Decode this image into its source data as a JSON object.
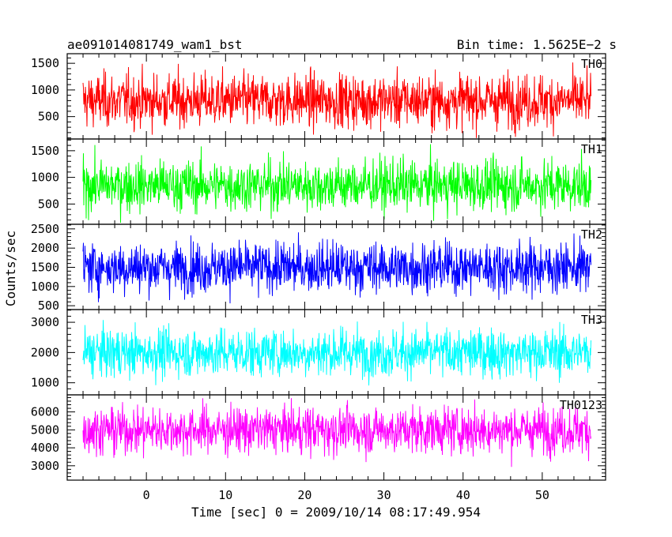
{
  "header": {
    "title": "ae091014081749_wam1_bst",
    "bin_time": "Bin time: 1.5625E−2 s"
  },
  "axes": {
    "ylabel": "Counts/sec",
    "xlabel": "Time [sec] 0 = 2009/10/14 08:17:49.954"
  },
  "chart_data": {
    "type": "line",
    "title": "ae091014081749_wam1_bst",
    "xlabel": "Time [sec] 0 = 2009/10/14 08:17:49.954",
    "ylabel": "Counts/sec",
    "xlim": [
      -10,
      58
    ],
    "x_ticks": [
      0,
      10,
      20,
      30,
      40,
      50
    ],
    "data_range_x": [
      -8.0,
      56.2
    ],
    "bin_time": 0.015625,
    "grid": false,
    "panels": [
      {
        "name": "TH0",
        "color": "#ff0000",
        "ylim": [
          80,
          1680
        ],
        "y_ticks": [
          500,
          1000,
          1500
        ],
        "mean": 800,
        "spread": 250,
        "min": 100,
        "max": 1680
      },
      {
        "name": "TH1",
        "color": "#00ff00",
        "ylim": [
          120,
          1720
        ],
        "y_ticks": [
          500,
          1000,
          1500
        ],
        "mean": 850,
        "spread": 240,
        "min": 150,
        "max": 1720
      },
      {
        "name": "TH2",
        "color": "#0000ff",
        "ylim": [
          400,
          2620
        ],
        "y_ticks": [
          500,
          1000,
          1500,
          2000,
          2500
        ],
        "mean": 1500,
        "spread": 330,
        "min": 450,
        "max": 2620
      },
      {
        "name": "TH3",
        "color": "#00ffff",
        "ylim": [
          600,
          3420
        ],
        "y_ticks": [
          1000,
          2000,
          3000
        ],
        "mean": 2000,
        "spread": 400,
        "min": 700,
        "max": 3420
      },
      {
        "name": "TH0123",
        "color": "#ff00ff",
        "ylim": [
          2200,
          6950
        ],
        "y_ticks": [
          3000,
          4000,
          5000,
          6000
        ],
        "mean": 5000,
        "spread": 650,
        "min": 2300,
        "max": 6950
      }
    ]
  }
}
